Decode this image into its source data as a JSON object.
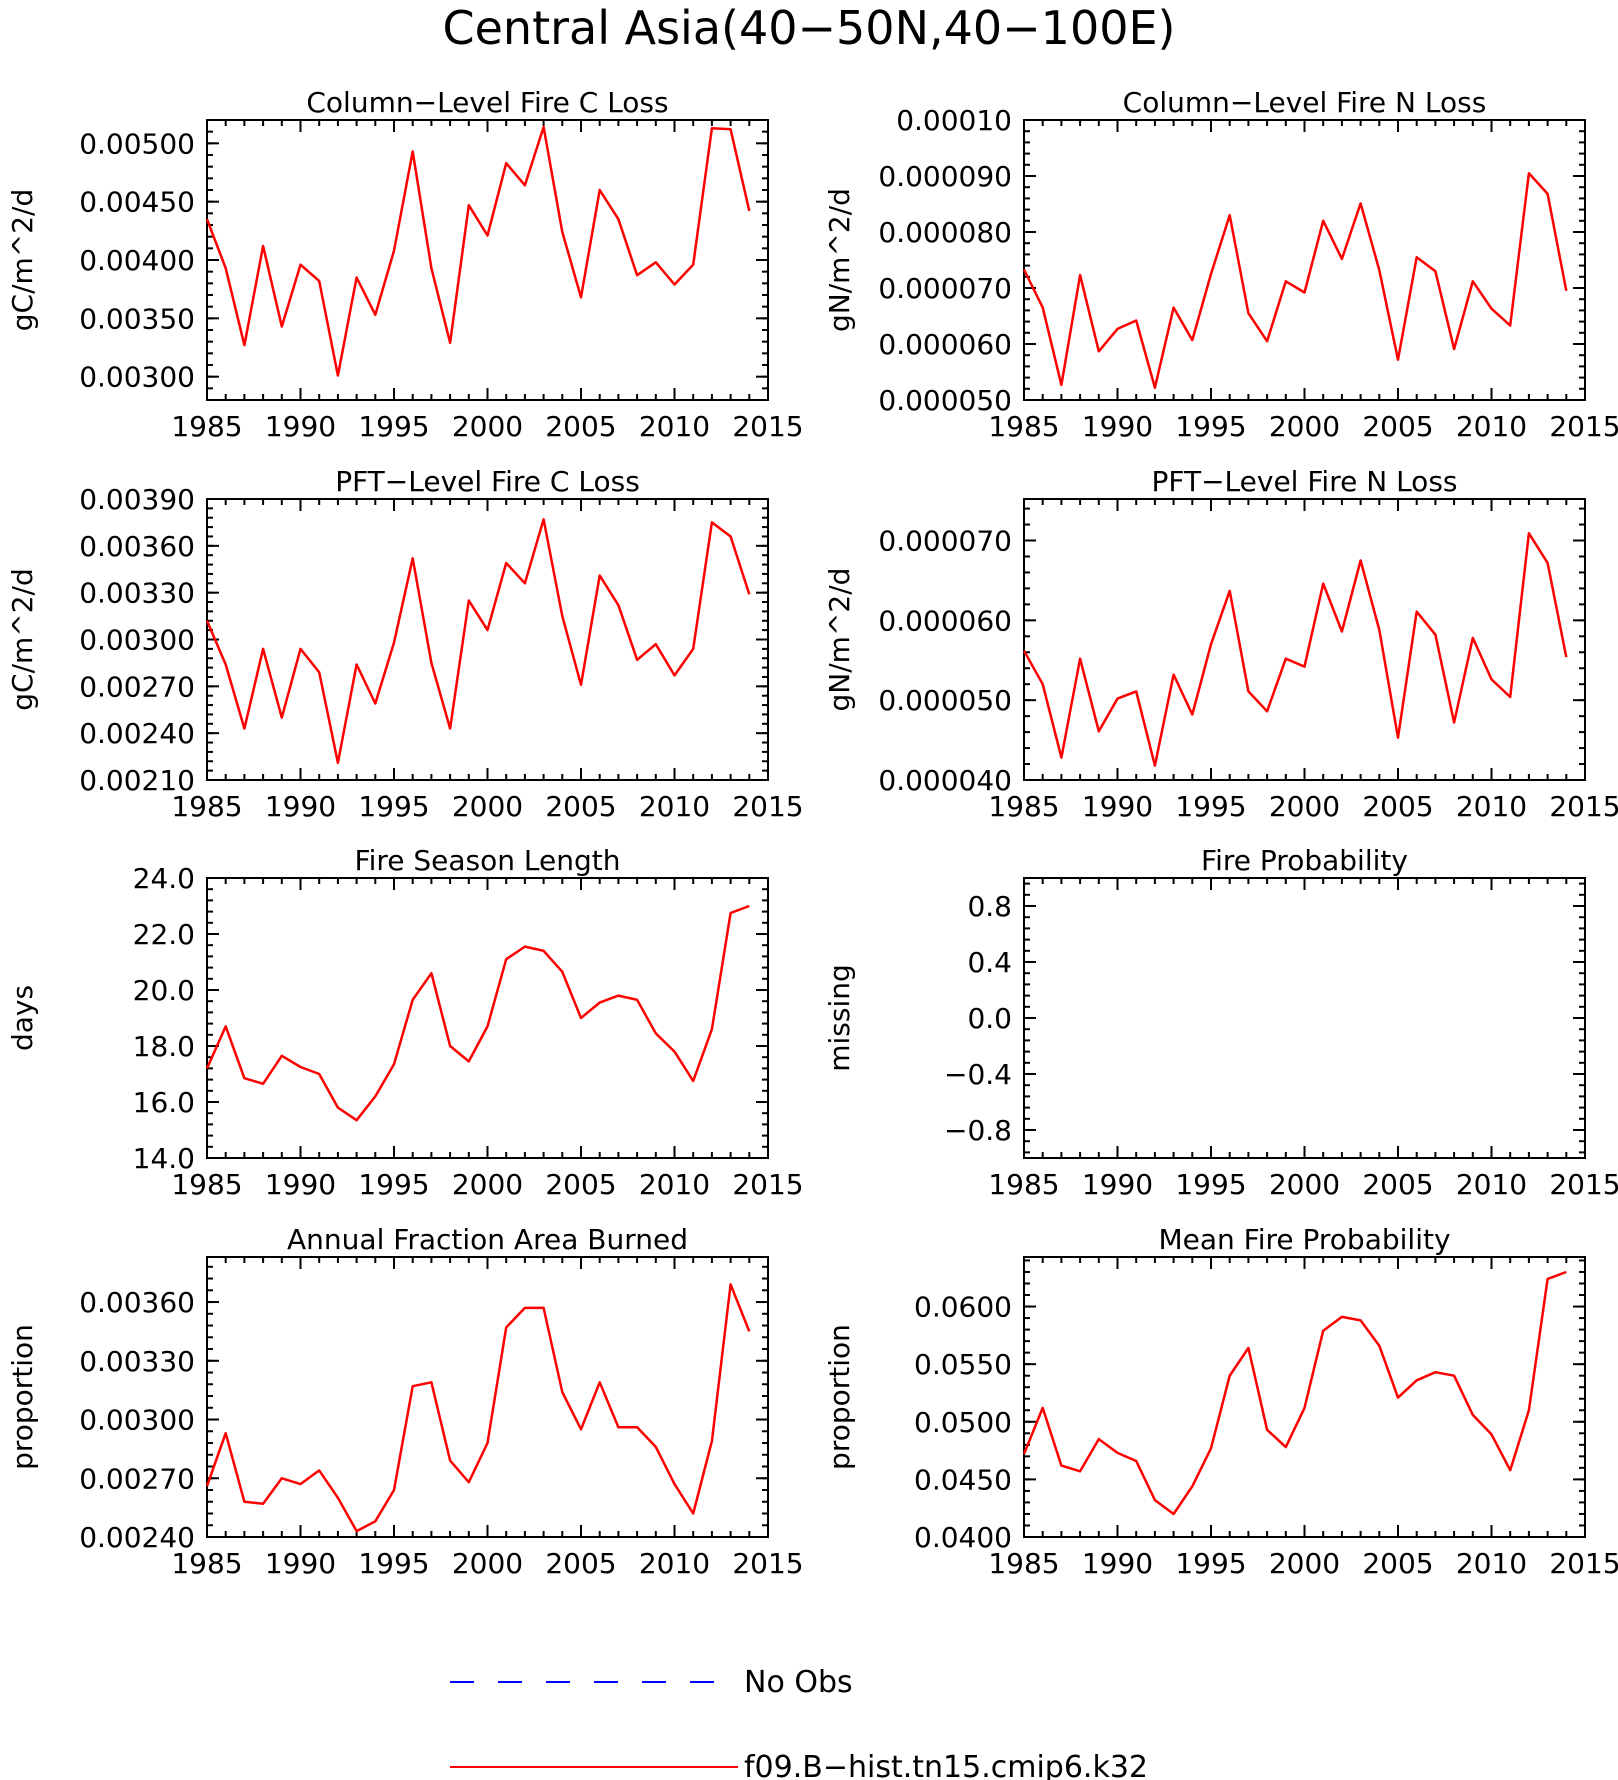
{
  "figure": {
    "title": "Central Asia(40−50N,40−100E)"
  },
  "legend": {
    "position": "bottom-center",
    "entries": [
      {
        "label": "No Obs",
        "color": "#0000ff",
        "style": "dashed"
      },
      {
        "label": "f09.B−hist.tn15.cmip6.k32",
        "color": "#ff0000",
        "style": "solid"
      }
    ]
  },
  "chart_data": [
    {
      "type": "line",
      "title": "Column−Level Fire C Loss",
      "ylabel": "gC/m^2/d",
      "xlim": [
        1985,
        2015
      ],
      "ylim": [
        0.0028,
        0.0052
      ],
      "xticks": [
        "1985",
        "1990",
        "1995",
        "2000",
        "2005",
        "2010",
        "2015"
      ],
      "yticks": [
        {
          "value": 0.003,
          "label": "0.00300"
        },
        {
          "value": 0.0035,
          "label": "0.00350"
        },
        {
          "value": 0.004,
          "label": "0.00400"
        },
        {
          "value": 0.0045,
          "label": "0.00450"
        },
        {
          "value": 0.005,
          "label": "0.00500"
        }
      ],
      "series": [
        {
          "color": "#ff0000",
          "x": [
            1985,
            1986,
            1987,
            1988,
            1989,
            1990,
            1991,
            1992,
            1993,
            1994,
            1995,
            1996,
            1997,
            1998,
            1999,
            2000,
            2001,
            2002,
            2003,
            2004,
            2005,
            2006,
            2007,
            2008,
            2009,
            2010,
            2011,
            2012,
            2013,
            2014
          ],
          "values": [
            0.00435,
            0.00393,
            0.00327,
            0.00412,
            0.00343,
            0.00396,
            0.00382,
            0.00301,
            0.00385,
            0.00353,
            0.00408,
            0.00493,
            0.00393,
            0.00329,
            0.00447,
            0.00421,
            0.00483,
            0.00464,
            0.00514,
            0.00424,
            0.00368,
            0.0046,
            0.00435,
            0.00387,
            0.00398,
            0.00379,
            0.00396,
            0.00513,
            0.00512,
            0.00442
          ]
        }
      ]
    },
    {
      "type": "line",
      "title": "Column−Level Fire N Loss",
      "ylabel": "gN/m^2/d",
      "xlim": [
        1985,
        2015
      ],
      "ylim": [
        5e-05,
        0.0001
      ],
      "xticks": [
        "1985",
        "1990",
        "1995",
        "2000",
        "2005",
        "2010",
        "2015"
      ],
      "yticks": [
        {
          "value": 5e-05,
          "label": "0.000050"
        },
        {
          "value": 6e-05,
          "label": "0.000060"
        },
        {
          "value": 7e-05,
          "label": "0.000070"
        },
        {
          "value": 8e-05,
          "label": "0.000080"
        },
        {
          "value": 9e-05,
          "label": "0.000090"
        },
        {
          "value": 0.0001,
          "label": "0.00010"
        }
      ],
      "series": [
        {
          "color": "#ff0000",
          "x": [
            1985,
            1986,
            1987,
            1988,
            1989,
            1990,
            1991,
            1992,
            1993,
            1994,
            1995,
            1996,
            1997,
            1998,
            1999,
            2000,
            2001,
            2002,
            2003,
            2004,
            2005,
            2006,
            2007,
            2008,
            2009,
            2010,
            2011,
            2012,
            2013,
            2014
          ],
          "values": [
            7.33e-05,
            6.65e-05,
            5.27e-05,
            7.23e-05,
            5.87e-05,
            6.27e-05,
            6.42e-05,
            5.22e-05,
            6.65e-05,
            6.07e-05,
            7.25e-05,
            8.3e-05,
            6.55e-05,
            6.05e-05,
            7.12e-05,
            6.92e-05,
            8.2e-05,
            7.52e-05,
            8.51e-05,
            7.32e-05,
            5.72e-05,
            7.55e-05,
            7.3e-05,
            5.91e-05,
            7.12e-05,
            6.63e-05,
            6.33e-05,
            9.05e-05,
            8.68e-05,
            6.95e-05
          ]
        }
      ]
    },
    {
      "type": "line",
      "title": "PFT−Level Fire C Loss",
      "ylabel": "gC/m^2/d",
      "xlim": [
        1985,
        2015
      ],
      "ylim": [
        0.0021,
        0.0039
      ],
      "xticks": [
        "1985",
        "1990",
        "1995",
        "2000",
        "2005",
        "2010",
        "2015"
      ],
      "yticks": [
        {
          "value": 0.0021,
          "label": "0.00210"
        },
        {
          "value": 0.0024,
          "label": "0.00240"
        },
        {
          "value": 0.0027,
          "label": "0.00270"
        },
        {
          "value": 0.003,
          "label": "0.00300"
        },
        {
          "value": 0.0033,
          "label": "0.00330"
        },
        {
          "value": 0.0036,
          "label": "0.00360"
        },
        {
          "value": 0.0039,
          "label": "0.00390"
        }
      ],
      "series": [
        {
          "color": "#ff0000",
          "x": [
            1985,
            1986,
            1987,
            1988,
            1989,
            1990,
            1991,
            1992,
            1993,
            1994,
            1995,
            1996,
            1997,
            1998,
            1999,
            2000,
            2001,
            2002,
            2003,
            2004,
            2005,
            2006,
            2007,
            2008,
            2009,
            2010,
            2011,
            2012,
            2013,
            2014
          ],
          "values": [
            0.00312,
            0.00284,
            0.00243,
            0.00294,
            0.0025,
            0.00294,
            0.00279,
            0.00221,
            0.00284,
            0.00259,
            0.00298,
            0.00352,
            0.00285,
            0.00243,
            0.00325,
            0.00306,
            0.00349,
            0.00336,
            0.00377,
            0.00315,
            0.00271,
            0.00341,
            0.00322,
            0.00287,
            0.00297,
            0.00277,
            0.00294,
            0.00375,
            0.00366,
            0.00329
          ]
        }
      ]
    },
    {
      "type": "line",
      "title": "PFT−Level Fire N Loss",
      "ylabel": "gN/m^2/d",
      "xlim": [
        1985,
        2015
      ],
      "ylim": [
        4e-05,
        7.52e-05
      ],
      "xticks": [
        "1985",
        "1990",
        "1995",
        "2000",
        "2005",
        "2010",
        "2015"
      ],
      "yticks": [
        {
          "value": 4e-05,
          "label": "0.000040"
        },
        {
          "value": 5e-05,
          "label": "0.000050"
        },
        {
          "value": 6e-05,
          "label": "0.000060"
        },
        {
          "value": 7e-05,
          "label": "0.000070"
        }
      ],
      "series": [
        {
          "color": "#ff0000",
          "x": [
            1985,
            1986,
            1987,
            1988,
            1989,
            1990,
            1991,
            1992,
            1993,
            1994,
            1995,
            1996,
            1997,
            1998,
            1999,
            2000,
            2001,
            2002,
            2003,
            2004,
            2005,
            2006,
            2007,
            2008,
            2009,
            2010,
            2011,
            2012,
            2013,
            2014
          ],
          "values": [
            5.62e-05,
            5.2e-05,
            4.28e-05,
            5.52e-05,
            4.61e-05,
            5.02e-05,
            5.11e-05,
            4.18e-05,
            5.32e-05,
            4.82e-05,
            5.7e-05,
            6.37e-05,
            5.11e-05,
            4.86e-05,
            5.52e-05,
            5.42e-05,
            6.46e-05,
            5.86e-05,
            6.75e-05,
            5.88e-05,
            4.53e-05,
            6.11e-05,
            5.82e-05,
            4.72e-05,
            5.78e-05,
            5.26e-05,
            5.04e-05,
            7.09e-05,
            6.72e-05,
            5.54e-05
          ]
        }
      ]
    },
    {
      "type": "line",
      "title": "Fire Season Length",
      "ylabel": "days",
      "xlim": [
        1985,
        2015
      ],
      "ylim": [
        14,
        24
      ],
      "xticks": [
        "1985",
        "1990",
        "1995",
        "2000",
        "2005",
        "2010",
        "2015"
      ],
      "yticks": [
        {
          "value": 14,
          "label": "14.0"
        },
        {
          "value": 16,
          "label": "16.0"
        },
        {
          "value": 18,
          "label": "18.0"
        },
        {
          "value": 20,
          "label": "20.0"
        },
        {
          "value": 22,
          "label": "22.0"
        },
        {
          "value": 24,
          "label": "24.0"
        }
      ],
      "series": [
        {
          "color": "#ff0000",
          "x": [
            1985,
            1986,
            1987,
            1988,
            1989,
            1990,
            1991,
            1992,
            1993,
            1994,
            1995,
            1996,
            1997,
            1998,
            1999,
            2000,
            2001,
            2002,
            2003,
            2004,
            2005,
            2006,
            2007,
            2008,
            2009,
            2010,
            2011,
            2012,
            2013,
            2014
          ],
          "values": [
            17.2,
            18.7,
            16.85,
            16.65,
            17.65,
            17.25,
            17.0,
            15.8,
            15.35,
            16.2,
            17.35,
            19.65,
            20.6,
            18.0,
            17.45,
            18.7,
            21.1,
            21.55,
            21.4,
            20.65,
            19.0,
            19.55,
            19.8,
            19.65,
            18.45,
            17.8,
            16.75,
            18.6,
            22.75,
            23.0
          ]
        }
      ]
    },
    {
      "type": "line",
      "title": "Fire Probability",
      "ylabel": "missing",
      "xlim": [
        1985,
        2015
      ],
      "ylim": [
        -1,
        1
      ],
      "xticks": [
        "1985",
        "1990",
        "1995",
        "2000",
        "2005",
        "2010",
        "2015"
      ],
      "yticks": [
        {
          "value": -0.8,
          "label": "−0.8"
        },
        {
          "value": -0.4,
          "label": "−0.4"
        },
        {
          "value": 0,
          "label": "0.0"
        },
        {
          "value": 0.4,
          "label": "0.4"
        },
        {
          "value": 0.8,
          "label": "0.8"
        }
      ],
      "series": []
    },
    {
      "type": "line",
      "title": "Annual Fraction Area Burned",
      "ylabel": "proportion",
      "xlim": [
        1985,
        2015
      ],
      "ylim": [
        0.0024,
        0.00383
      ],
      "xticks": [
        "1985",
        "1990",
        "1995",
        "2000",
        "2005",
        "2010",
        "2015"
      ],
      "yticks": [
        {
          "value": 0.0024,
          "label": "0.00240"
        },
        {
          "value": 0.0027,
          "label": "0.00270"
        },
        {
          "value": 0.003,
          "label": "0.00300"
        },
        {
          "value": 0.0033,
          "label": "0.00330"
        },
        {
          "value": 0.0036,
          "label": "0.00360"
        }
      ],
      "series": [
        {
          "color": "#ff0000",
          "x": [
            1985,
            1986,
            1987,
            1988,
            1989,
            1990,
            1991,
            1992,
            1993,
            1994,
            1995,
            1996,
            1997,
            1998,
            1999,
            2000,
            2001,
            2002,
            2003,
            2004,
            2005,
            2006,
            2007,
            2008,
            2009,
            2010,
            2011,
            2012,
            2013,
            2014
          ],
          "values": [
            0.00266,
            0.00293,
            0.00258,
            0.00257,
            0.0027,
            0.00267,
            0.00274,
            0.0026,
            0.00243,
            0.00248,
            0.00264,
            0.00317,
            0.00319,
            0.00279,
            0.00268,
            0.00288,
            0.00347,
            0.00357,
            0.00357,
            0.00314,
            0.00295,
            0.00319,
            0.00296,
            0.00296,
            0.00286,
            0.00267,
            0.00252,
            0.00289,
            0.00369,
            0.00345
          ]
        }
      ]
    },
    {
      "type": "line",
      "title": "Mean Fire Probability",
      "ylabel": "proportion",
      "xlim": [
        1985,
        2015
      ],
      "ylim": [
        0.04,
        0.0643
      ],
      "xticks": [
        "1985",
        "1990",
        "1995",
        "2000",
        "2005",
        "2010",
        "2015"
      ],
      "yticks": [
        {
          "value": 0.04,
          "label": "0.0400"
        },
        {
          "value": 0.045,
          "label": "0.0450"
        },
        {
          "value": 0.05,
          "label": "0.0500"
        },
        {
          "value": 0.055,
          "label": "0.0550"
        },
        {
          "value": 0.06,
          "label": "0.0600"
        }
      ],
      "series": [
        {
          "color": "#ff0000",
          "x": [
            1985,
            1986,
            1987,
            1988,
            1989,
            1990,
            1991,
            1992,
            1993,
            1994,
            1995,
            1996,
            1997,
            1998,
            1999,
            2000,
            2001,
            2002,
            2003,
            2004,
            2005,
            2006,
            2007,
            2008,
            2009,
            2010,
            2011,
            2012,
            2013,
            2014
          ],
          "values": [
            0.0472,
            0.0512,
            0.0462,
            0.0457,
            0.0485,
            0.0473,
            0.0466,
            0.0432,
            0.042,
            0.0444,
            0.0477,
            0.054,
            0.0564,
            0.0493,
            0.0478,
            0.0512,
            0.0579,
            0.0591,
            0.0588,
            0.0566,
            0.0521,
            0.0536,
            0.0543,
            0.054,
            0.0506,
            0.0489,
            0.0458,
            0.051,
            0.0624,
            0.063
          ]
        }
      ]
    }
  ]
}
